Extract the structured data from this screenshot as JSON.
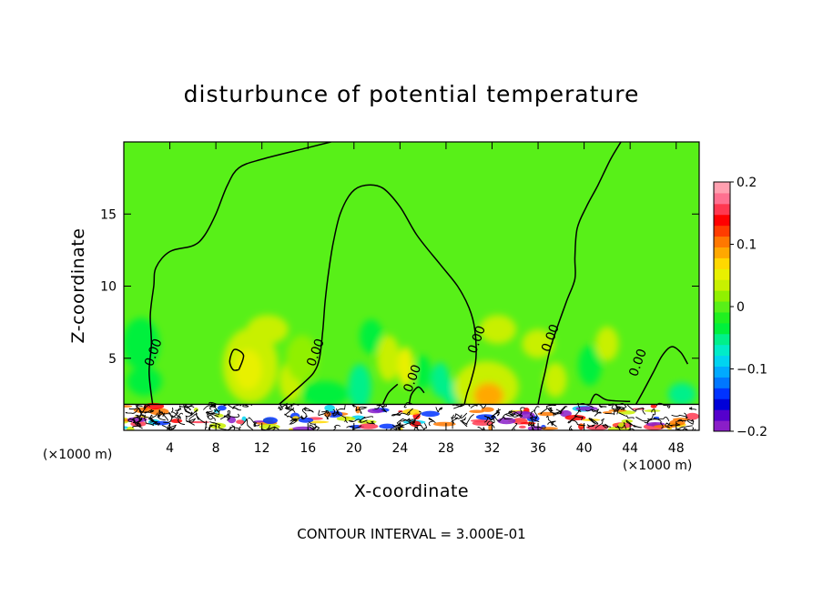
{
  "chart_data": {
    "type": "heatmap",
    "title": "disturbunce of potential temperature",
    "xlabel": "X-coordinate",
    "ylabel": "Z-coordinate",
    "x_unit": "(×1000 m)",
    "xlim": [
      0,
      50
    ],
    "ylim": [
      0,
      20
    ],
    "x_ticks": [
      4,
      8,
      12,
      16,
      20,
      24,
      28,
      32,
      36,
      40,
      44,
      48
    ],
    "y_ticks": [
      5,
      10,
      15
    ],
    "colorbar": {
      "min": -0.2,
      "max": 0.2,
      "tick_values": [
        0.2,
        0.1,
        0,
        -0.1,
        -0.2
      ],
      "tick_labels": [
        "0.2",
        "0.1",
        "0",
        "−0.1",
        "−0.2"
      ],
      "colors": [
        "#8a1ec8",
        "#5500cc",
        "#0000d8",
        "#0033ff",
        "#0077ff",
        "#00aaff",
        "#00d4f0",
        "#00ecc8",
        "#00f08a",
        "#00f03c",
        "#20f020",
        "#58f018",
        "#90f000",
        "#c8f000",
        "#e8f000",
        "#ffd800",
        "#ffa800",
        "#ff7800",
        "#ff3c00",
        "#ff0000",
        "#ff3850",
        "#ff7090",
        "#ffa0b0"
      ]
    },
    "background_value": 0.0,
    "contour_interval": 0.3,
    "contour_interval_label": "CONTOUR INTERVAL = 3.000E-01",
    "contour_labels": [
      {
        "text": "0.00",
        "x": 2.9,
        "z": 5.3
      },
      {
        "text": "0.00",
        "x": 17.0,
        "z": 5.3
      },
      {
        "text": "0.00",
        "x": 25.4,
        "z": 3.5
      },
      {
        "text": "0.00",
        "x": 31.0,
        "z": 6.2
      },
      {
        "text": "0.00",
        "x": 37.4,
        "z": 6.3
      },
      {
        "text": "0.00",
        "x": 45.0,
        "z": 4.6
      }
    ],
    "zero_contours": [
      [
        [
          2.5,
          1.8
        ],
        [
          2.2,
          4
        ],
        [
          2.4,
          6
        ],
        [
          2.3,
          8
        ],
        [
          2.6,
          10
        ],
        [
          2.8,
          11.3
        ],
        [
          4,
          12.4
        ],
        [
          6,
          12.8
        ],
        [
          7,
          13.5
        ],
        [
          8,
          15
        ],
        [
          9,
          17
        ],
        [
          10,
          18.2
        ],
        [
          12,
          18.8
        ],
        [
          16,
          19.6
        ],
        [
          18,
          20
        ]
      ],
      [
        [
          13.5,
          1.8
        ],
        [
          14.5,
          2.5
        ],
        [
          15.5,
          3.2
        ],
        [
          16.5,
          4
        ],
        [
          17,
          5
        ],
        [
          17.3,
          7
        ],
        [
          17.5,
          9
        ],
        [
          17.8,
          11
        ],
        [
          18.2,
          13
        ],
        [
          18.8,
          15
        ],
        [
          19.8,
          16.5
        ],
        [
          21,
          17
        ],
        [
          22.5,
          16.8
        ],
        [
          24,
          15.5
        ],
        [
          25.5,
          13.5
        ],
        [
          27.5,
          11.5
        ],
        [
          29,
          10
        ],
        [
          30,
          8.5
        ],
        [
          30.5,
          7
        ],
        [
          30.6,
          5
        ],
        [
          30.2,
          3.5
        ],
        [
          29.8,
          2.5
        ],
        [
          29.6,
          1.8
        ]
      ],
      [
        [
          36,
          1.8
        ],
        [
          36.3,
          3
        ],
        [
          36.6,
          4
        ],
        [
          37,
          5.5
        ],
        [
          37.6,
          7
        ],
        [
          38.5,
          9
        ],
        [
          39.2,
          10.5
        ],
        [
          39.2,
          12
        ],
        [
          39.4,
          14
        ],
        [
          40.2,
          15.5
        ],
        [
          41.2,
          17
        ],
        [
          42.3,
          18.8
        ],
        [
          43.2,
          20
        ]
      ],
      [
        [
          24.8,
          1.8
        ],
        [
          25,
          2.5
        ],
        [
          25.6,
          3
        ],
        [
          26.1,
          2.6
        ]
      ],
      [
        [
          22.5,
          1.8
        ],
        [
          23,
          2.6
        ],
        [
          23.8,
          3.2
        ]
      ],
      [
        [
          10,
          4.2
        ],
        [
          10.4,
          5.2
        ],
        [
          9.6,
          5.6
        ],
        [
          9.2,
          4.8
        ],
        [
          9.5,
          4.2
        ],
        [
          10,
          4.2
        ]
      ],
      [
        [
          44.5,
          1.8
        ],
        [
          45.2,
          2.8
        ],
        [
          46,
          4
        ],
        [
          46.8,
          5.2
        ],
        [
          47.6,
          5.8
        ],
        [
          48.4,
          5.4
        ],
        [
          49,
          4.6
        ]
      ],
      [
        [
          40.5,
          1.8
        ],
        [
          41,
          2.5
        ],
        [
          42,
          2.1
        ],
        [
          44,
          2
        ]
      ]
    ],
    "anomalies": [
      {
        "x": 1.5,
        "z": 6.0,
        "rx": 1.6,
        "rz": 1.8,
        "value": -0.04
      },
      {
        "x": 1.8,
        "z": 3.4,
        "rx": 1.5,
        "rz": 1.0,
        "value": -0.03
      },
      {
        "x": 11.0,
        "z": 4.5,
        "rx": 2.4,
        "rz": 2.6,
        "value": 0.04
      },
      {
        "x": 10.8,
        "z": 4.2,
        "rx": 1.2,
        "rz": 1.4,
        "value": 0.06
      },
      {
        "x": 12.5,
        "z": 7.0,
        "rx": 1.8,
        "rz": 1.0,
        "value": 0.03
      },
      {
        "x": 14.5,
        "z": 3.4,
        "rx": 1.0,
        "rz": 1.4,
        "value": 0.03
      },
      {
        "x": 15.5,
        "z": 5.0,
        "rx": 1.4,
        "rz": 1.6,
        "value": 0.02
      },
      {
        "x": 17.5,
        "z": 2.5,
        "rx": 2.0,
        "rz": 0.9,
        "value": -0.03
      },
      {
        "x": 20.5,
        "z": 3.0,
        "rx": 1.0,
        "rz": 1.6,
        "value": -0.05
      },
      {
        "x": 21.5,
        "z": 6.5,
        "rx": 1.0,
        "rz": 1.2,
        "value": -0.03
      },
      {
        "x": 23.0,
        "z": 5.0,
        "rx": 1.0,
        "rz": 1.6,
        "value": 0.04
      },
      {
        "x": 24.5,
        "z": 4.4,
        "rx": 0.7,
        "rz": 1.4,
        "value": 0.05
      },
      {
        "x": 26.0,
        "z": 4.0,
        "rx": 0.7,
        "rz": 1.2,
        "value": -0.04
      },
      {
        "x": 27.5,
        "z": 3.5,
        "rx": 0.8,
        "rz": 1.2,
        "value": -0.05
      },
      {
        "x": 28.5,
        "z": 2.6,
        "rx": 0.8,
        "rz": 0.9,
        "value": -0.06
      },
      {
        "x": 31.5,
        "z": 3.0,
        "rx": 2.8,
        "rz": 1.8,
        "value": 0.04
      },
      {
        "x": 31.7,
        "z": 2.4,
        "rx": 1.3,
        "rz": 0.9,
        "value": 0.09
      },
      {
        "x": 32.5,
        "z": 7.0,
        "rx": 1.6,
        "rz": 1.0,
        "value": 0.03
      },
      {
        "x": 36.0,
        "z": 6.0,
        "rx": 1.4,
        "rz": 1.0,
        "value": 0.03
      },
      {
        "x": 37.5,
        "z": 3.5,
        "rx": 1.0,
        "rz": 1.2,
        "value": 0.03
      },
      {
        "x": 40.5,
        "z": 4.5,
        "rx": 1.0,
        "rz": 1.4,
        "value": -0.03
      },
      {
        "x": 42.0,
        "z": 6.0,
        "rx": 1.0,
        "rz": 1.2,
        "value": 0.03
      },
      {
        "x": 48.5,
        "z": 2.5,
        "rx": 1.2,
        "rz": 0.8,
        "value": -0.05
      }
    ],
    "boundary_layer_top": 1.8
  }
}
